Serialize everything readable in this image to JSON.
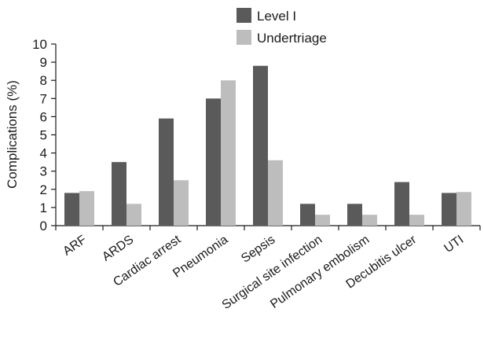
{
  "chart_data": {
    "type": "bar",
    "title": "",
    "xlabel": "",
    "ylabel": "Complications (%)",
    "ylim": [
      0,
      10
    ],
    "yticks": [
      0,
      1,
      2,
      3,
      4,
      5,
      6,
      7,
      8,
      9,
      10
    ],
    "grid": false,
    "legend_position": "top",
    "categories": [
      "ARF",
      "ARDS",
      "Cardiac arrest",
      "Pneumonia",
      "Sepsis",
      "Surgical site infection",
      "Pulmonary embolism",
      "Decubitis ulcer",
      "UTI"
    ],
    "series": [
      {
        "name": "Level I",
        "color": "#5a5a5a",
        "values": [
          1.8,
          3.5,
          5.9,
          7.0,
          8.8,
          1.2,
          1.2,
          2.4,
          1.8
        ]
      },
      {
        "name": "Undertriage",
        "color": "#bdbdbd",
        "values": [
          1.9,
          1.2,
          2.5,
          8.0,
          3.6,
          0.6,
          0.6,
          0.6,
          1.85
        ]
      }
    ]
  }
}
